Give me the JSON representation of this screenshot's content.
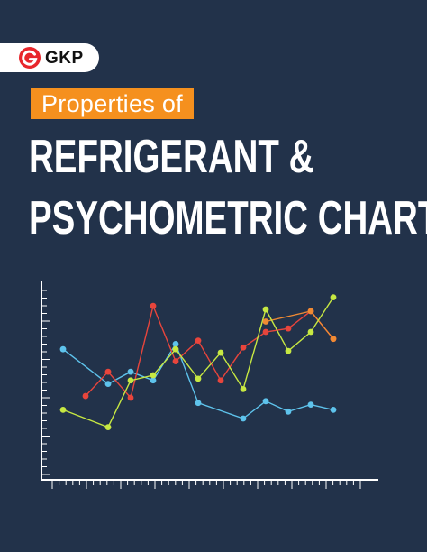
{
  "brand": {
    "name": "GKP",
    "colors": {
      "background": "#22324a",
      "accent": "#f5901e",
      "logo_red": "#e8262c"
    }
  },
  "cover": {
    "subtitle": "Properties of",
    "title_line1": "REFRIGERANT &",
    "title_line2": "PSYCHOMETRIC CHART"
  },
  "chart_data": {
    "type": "line",
    "decorative": true,
    "grid": false,
    "x": [
      1,
      2,
      3,
      4,
      5,
      6,
      7,
      8,
      9,
      10,
      11,
      12,
      13
    ],
    "ylim": [
      0,
      100
    ],
    "series": [
      {
        "color": "#5ec3ec",
        "values": [
          65,
          null,
          45,
          52,
          47,
          68,
          34,
          null,
          25,
          35,
          29,
          33,
          30
        ]
      },
      {
        "color": "#e8453c",
        "values": [
          null,
          38,
          52,
          37,
          90,
          58,
          70,
          47,
          66,
          75,
          77,
          87,
          71
        ]
      },
      {
        "color": "#f08a33",
        "values": [
          null,
          null,
          null,
          null,
          null,
          null,
          null,
          null,
          null,
          81,
          null,
          87,
          71
        ]
      },
      {
        "color": "#c7e842",
        "values": [
          30,
          null,
          20,
          47,
          50,
          65,
          48,
          63,
          42,
          88,
          64,
          75,
          95
        ]
      }
    ]
  }
}
